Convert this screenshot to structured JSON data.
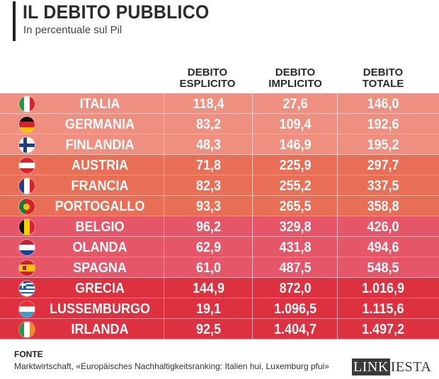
{
  "header": {
    "title": "IL DEBITO PUBBLICO",
    "subtitle": "In percentuale sul Pil"
  },
  "columns": [
    {
      "line1": "DEBITO",
      "line2": "ESPLICITO"
    },
    {
      "line1": "DEBITO",
      "line2": "IMPLICITO"
    },
    {
      "line1": "DEBITO",
      "line2": "TOTALE"
    }
  ],
  "rows": [
    {
      "country": "ITALIA",
      "esplicito": "118,4",
      "implicito": "27,6",
      "totale": "146,0",
      "flag": "italy-flag-icon",
      "color": "#ef8f7f"
    },
    {
      "country": "GERMANIA",
      "esplicito": "83,2",
      "implicito": "109,4",
      "totale": "192,6",
      "flag": "germany-flag-icon",
      "color": "#ef8f7f"
    },
    {
      "country": "FINLANDIA",
      "esplicito": "48,3",
      "implicito": "146,9",
      "totale": "195,2",
      "flag": "finland-flag-icon",
      "color": "#ef8f7f"
    },
    {
      "country": "AUSTRIA",
      "esplicito": "71,8",
      "implicito": "225,9",
      "totale": "297,7",
      "flag": "austria-flag-icon",
      "color": "#e86f55"
    },
    {
      "country": "FRANCIA",
      "esplicito": "82,3",
      "implicito": "255,2",
      "totale": "337,5",
      "flag": "france-flag-icon",
      "color": "#e86f55"
    },
    {
      "country": "PORTOGALLO",
      "esplicito": "93,3",
      "implicito": "265,5",
      "totale": "358,8",
      "flag": "portugal-flag-icon",
      "color": "#e86f55"
    },
    {
      "country": "BELGIO",
      "esplicito": "96,2",
      "implicito": "329,8",
      "totale": "426,0",
      "flag": "belgium-flag-icon",
      "color": "#e55768"
    },
    {
      "country": "OLANDA",
      "esplicito": "62,9",
      "implicito": "431,8",
      "totale": "494,6",
      "flag": "netherlands-flag-icon",
      "color": "#e55768"
    },
    {
      "country": "SPAGNA",
      "esplicito": "61,0",
      "implicito": "487,5",
      "totale": "548,5",
      "flag": "spain-flag-icon",
      "color": "#e55768"
    },
    {
      "country": "GRECIA",
      "esplicito": "144,9",
      "implicito": "872,0",
      "totale": "1.016,9",
      "flag": "greece-flag-icon",
      "color": "#dd3140"
    },
    {
      "country": "LUSSEMBURGO",
      "esplicito": "19,1",
      "implicito": "1.096,5",
      "totale": "1.115,6",
      "flag": "luxembourg-flag-icon",
      "color": "#dd3140"
    },
    {
      "country": "IRLANDA",
      "esplicito": "92,5",
      "implicito": "1.404,7",
      "totale": "1.497,2",
      "flag": "ireland-flag-icon",
      "color": "#dd3140"
    }
  ],
  "source": {
    "label": "FONTE",
    "text": "Marktwirtschaft, «Europäisches Nachhaltigkeitsranking: Italien hui, Luxemburg pfui»"
  },
  "logo": {
    "part1": "LINK",
    "part2": "IESTA"
  }
}
